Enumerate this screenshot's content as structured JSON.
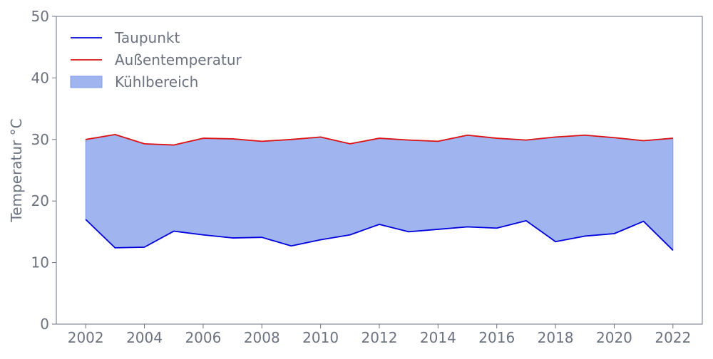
{
  "chart_data": {
    "type": "line",
    "title": "",
    "xlabel": "",
    "ylabel": "Temperatur °C",
    "xlim": [
      2001,
      2023
    ],
    "ylim": [
      0,
      50
    ],
    "x_ticks": [
      "2002",
      "2004",
      "2006",
      "2008",
      "2010",
      "2012",
      "2014",
      "2016",
      "2018",
      "2020",
      "2022"
    ],
    "y_ticks": [
      "0",
      "10",
      "20",
      "30",
      "40",
      "50"
    ],
    "grid": false,
    "legend_position": "top-left",
    "x": [
      2002,
      2003,
      2004,
      2005,
      2006,
      2007,
      2008,
      2009,
      2010,
      2011,
      2012,
      2013,
      2014,
      2015,
      2016,
      2017,
      2018,
      2019,
      2020,
      2021,
      2022
    ],
    "series": [
      {
        "name": "Taupunkt",
        "color": "#0000dd",
        "values": [
          17.0,
          12.4,
          12.5,
          15.1,
          14.5,
          14.0,
          14.1,
          12.7,
          13.7,
          14.5,
          16.2,
          15.0,
          15.4,
          15.8,
          15.6,
          16.8,
          13.4,
          14.3,
          14.7,
          16.7,
          12.0
        ]
      },
      {
        "name": "Außentemperatur",
        "color": "#dd1111",
        "values": [
          30.0,
          30.8,
          29.3,
          29.1,
          30.2,
          30.1,
          29.7,
          30.0,
          30.4,
          29.3,
          30.2,
          29.9,
          29.7,
          30.7,
          30.2,
          29.9,
          30.4,
          30.7,
          30.3,
          29.8,
          30.2
        ]
      }
    ],
    "fill_between": {
      "name": "Kühlbereich",
      "color": "#a0b4ef",
      "edge_color": "#7f9be8"
    }
  }
}
